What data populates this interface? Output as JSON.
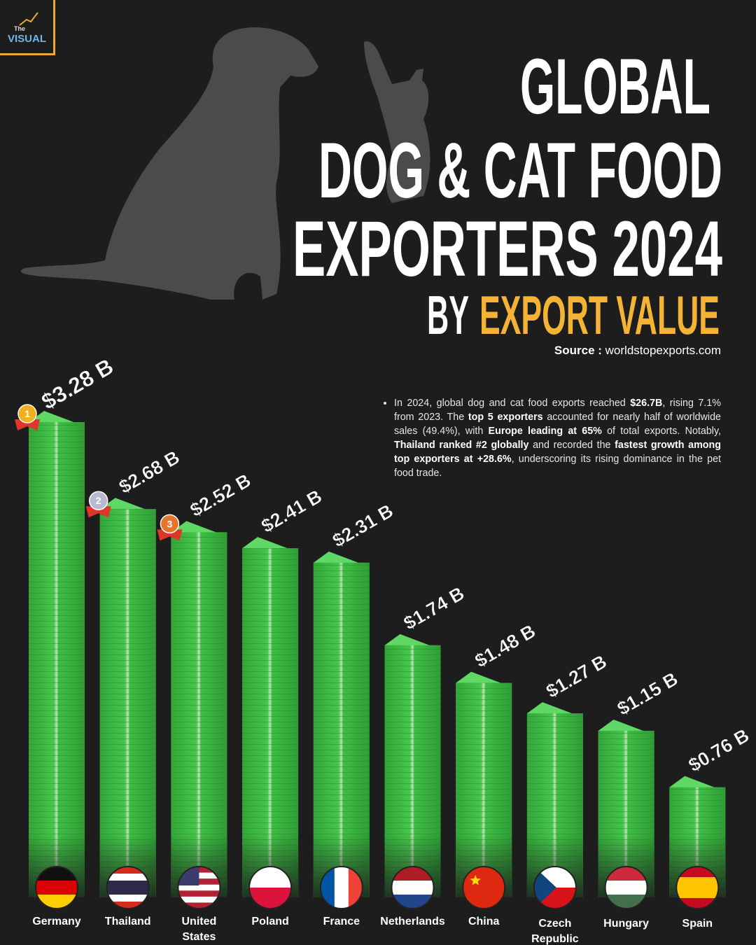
{
  "chart_data": {
    "type": "bar",
    "title": [
      "GLOBAL",
      "DOG & CAT FOOD",
      "EXPORTERS 2024"
    ],
    "subtitle": {
      "prefix": "BY",
      "highlight": "EXPORT VALUE"
    },
    "source": {
      "label": "Source :",
      "text": "worldstopexports.com"
    },
    "logo": {
      "small": "The",
      "big": "VISUAL"
    },
    "note": [
      {
        "text": "In 2024, global dog and cat food exports reached ",
        "bold": false
      },
      {
        "text": "$26.7B",
        "bold": true
      },
      {
        "text": ", rising 7.1% from 2023. The ",
        "bold": false
      },
      {
        "text": "top 5 exporters",
        "bold": true
      },
      {
        "text": " accounted for nearly half of worldwide sales (49.4%), with ",
        "bold": false
      },
      {
        "text": "Europe leading at 65%",
        "bold": true
      },
      {
        "text": " of total exports. Notably, ",
        "bold": false
      },
      {
        "text": "Thailand ranked #2 globally",
        "bold": true
      },
      {
        "text": " and recorded the ",
        "bold": false
      },
      {
        "text": "fastest growth among top exporters at +28.6%",
        "bold": true
      },
      {
        "text": ", underscoring its rising dominance in the pet food trade.",
        "bold": false
      }
    ],
    "categories": [
      "Germany",
      "Thailand",
      "United States",
      "Poland",
      "France",
      "Netherlands",
      "China",
      "Czech Republic",
      "Hungary",
      "Spain"
    ],
    "values": [
      3.28,
      2.68,
      2.52,
      2.41,
      2.31,
      1.74,
      1.48,
      1.27,
      1.15,
      0.76
    ],
    "value_labels": [
      "$3.28 B",
      "$2.68 B",
      "$2.52 B",
      "$2.41 B",
      "$2.31 B",
      "$1.74 B",
      "$1.48 B",
      "$1.27 B",
      "$1.15 B",
      "$0.76 B"
    ],
    "medals": [
      "1",
      "2",
      "3"
    ],
    "color": "#3fbe45",
    "highlight_color": "#f5b335"
  }
}
